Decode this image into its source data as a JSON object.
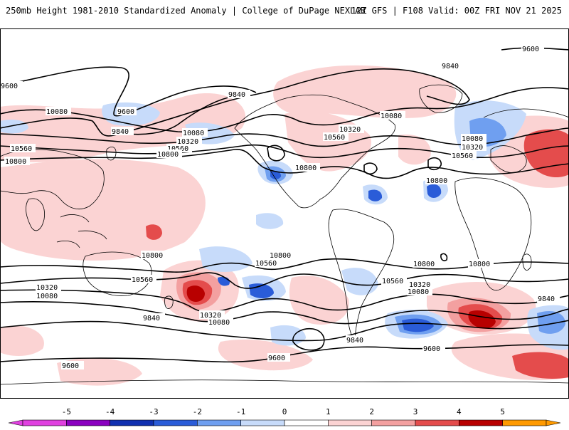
{
  "header": {
    "title": "250mb Height 1981-2010 Standardized Anomaly | College of DuPage NEXLAB",
    "run": "12Z GFS | F108 Valid: 00Z FRI NOV 21 2025"
  },
  "contour_labels": [
    "9600",
    "9840",
    "10080",
    "10320",
    "10560",
    "10800"
  ],
  "colorbar": {
    "ticks": [
      "-5",
      "-4",
      "-3",
      "-2",
      "-1",
      "0",
      "1",
      "2",
      "3",
      "4",
      "5"
    ],
    "colors": [
      "#e040e0",
      "#8a00c0",
      "#1030b0",
      "#2a5cd8",
      "#6f9ff0",
      "#c7dbfa",
      "#ffffff",
      "#fbd3d3",
      "#f3a0a0",
      "#e44c4c",
      "#b80000",
      "#ff9a00"
    ]
  },
  "anomaly_colors": {
    "neg_light": "#c7dbfa",
    "neg_mid": "#6f9ff0",
    "neg_strong": "#2a5cd8",
    "pos_light": "#fbd3d3",
    "pos_mid": "#f3a0a0",
    "pos_strong": "#e44c4c",
    "pos_extreme": "#b80000"
  }
}
